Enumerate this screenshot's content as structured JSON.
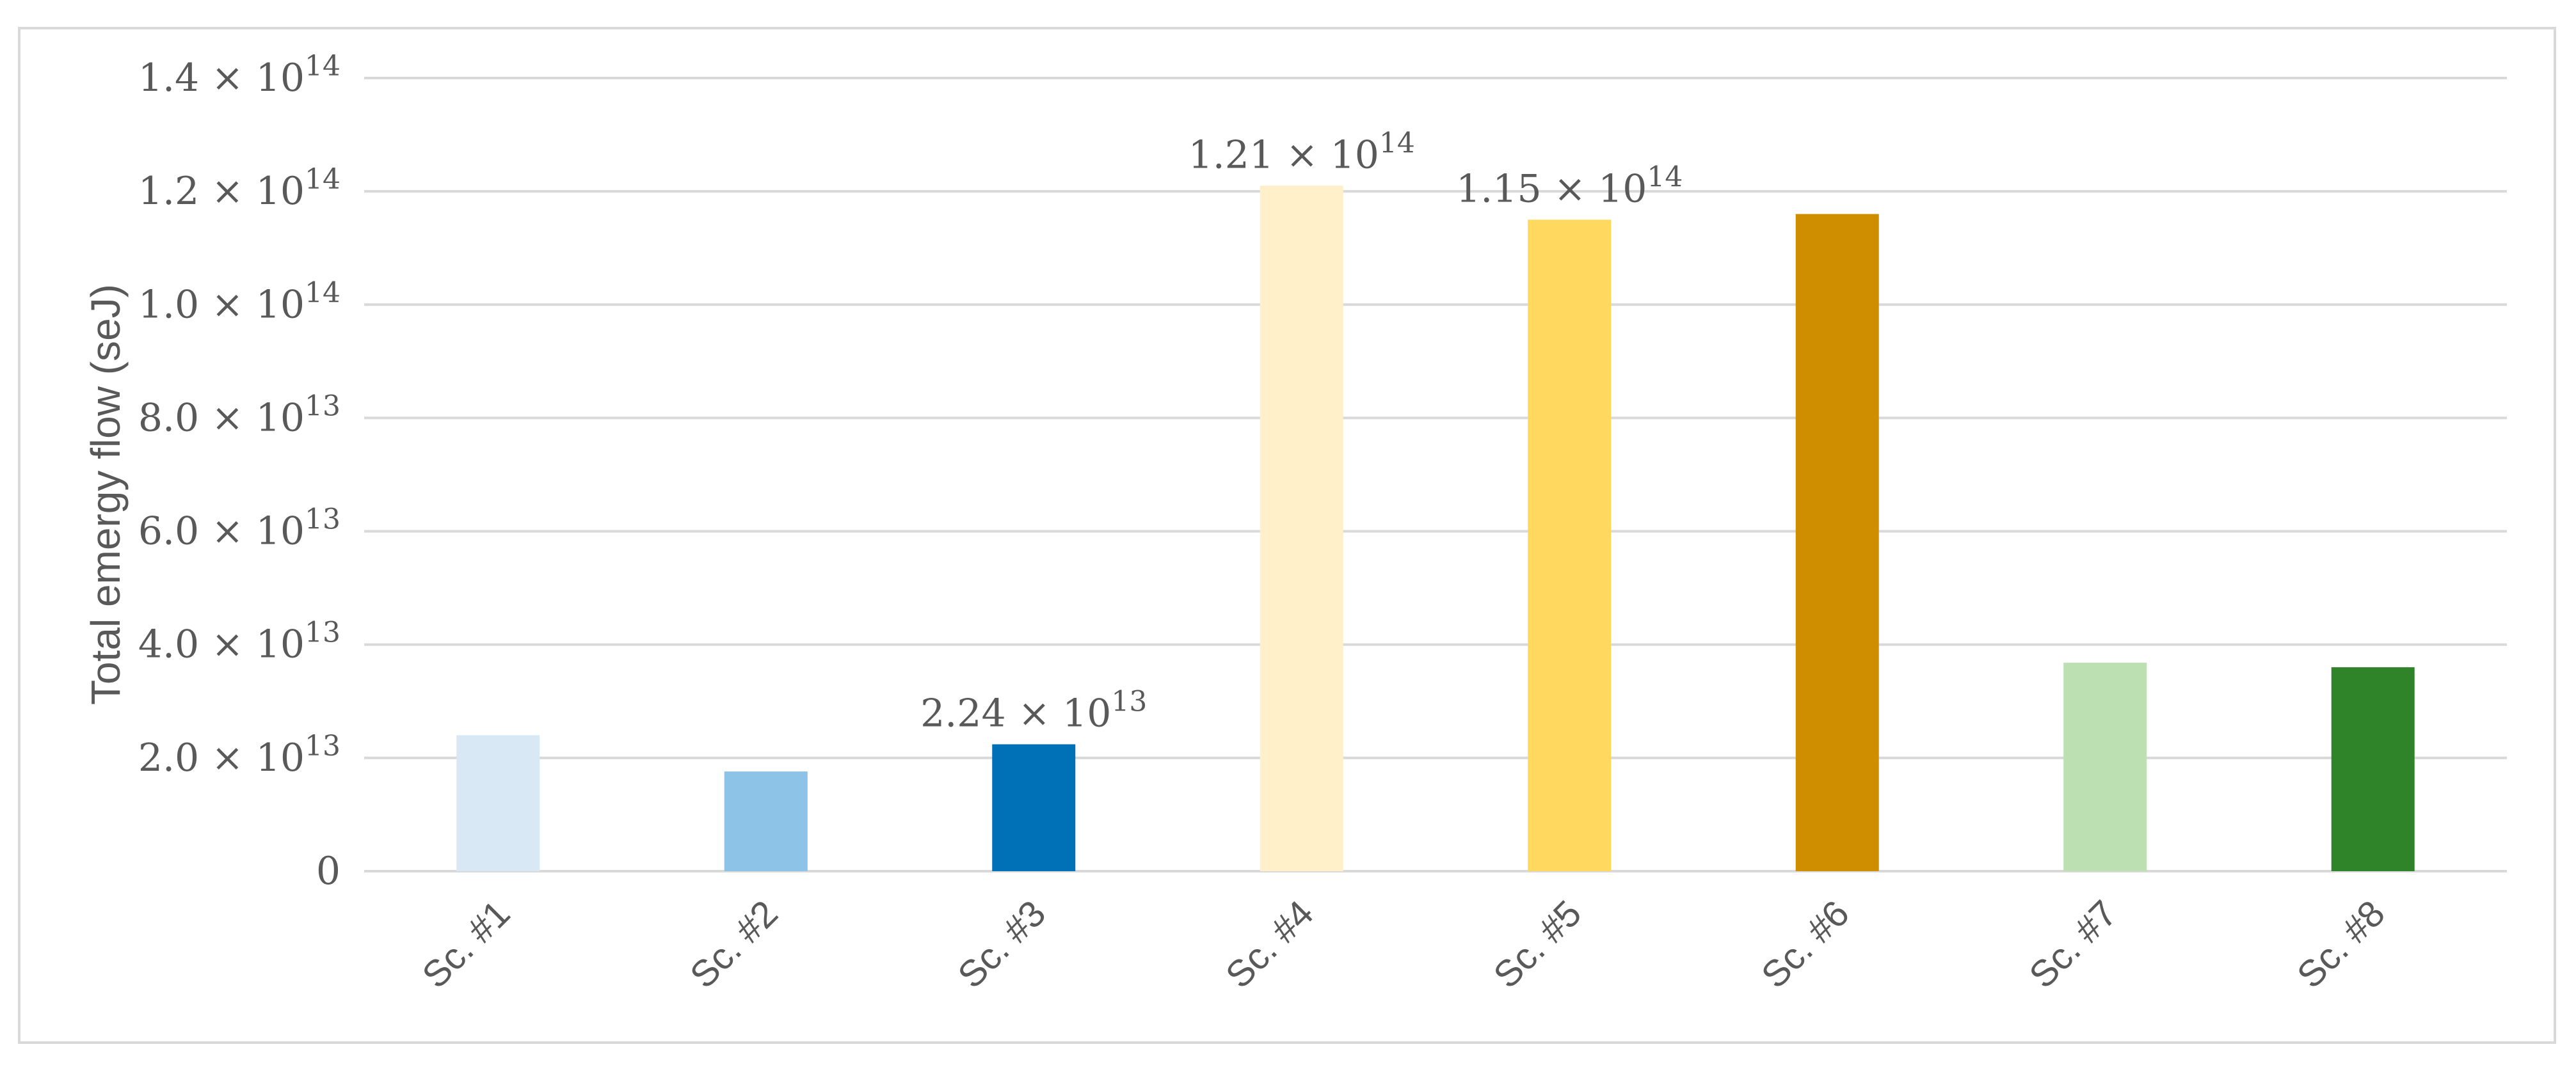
{
  "chart_data": {
    "type": "bar",
    "title": "",
    "xlabel": "",
    "ylabel": "Total emergy flow (seJ)",
    "ylim": [
      0,
      140000000000000
    ],
    "grid": true,
    "legend": "none",
    "categories": [
      "Sc. #1",
      "Sc. #2",
      "Sc. #3",
      "Sc. #4",
      "Sc. #5",
      "Sc. #6",
      "Sc. #7",
      "Sc. #8"
    ],
    "values": [
      24000000000000,
      17600000000000,
      22400000000000,
      121000000000000,
      115000000000000,
      116000000000000,
      36800000000000,
      36000000000000
    ],
    "colors": [
      "#d9e8f5",
      "#8ec3e8",
      "#0071b7",
      "#fff0c9",
      "#ffd95f",
      "#cf8d00",
      "#bce0b2",
      "#2f8429"
    ],
    "gridline_color": "#d9d9d9",
    "yticks": [
      {
        "value": 0,
        "mantissa": "0",
        "exponent": ""
      },
      {
        "value": 20000000000000,
        "mantissa": "2.0",
        "exponent": "13"
      },
      {
        "value": 40000000000000,
        "mantissa": "4.0",
        "exponent": "13"
      },
      {
        "value": 60000000000000,
        "mantissa": "6.0",
        "exponent": "13"
      },
      {
        "value": 80000000000000,
        "mantissa": "8.0",
        "exponent": "13"
      },
      {
        "value": 100000000000000,
        "mantissa": "1.0",
        "exponent": "14"
      },
      {
        "value": 120000000000000,
        "mantissa": "1.2",
        "exponent": "14"
      },
      {
        "value": 140000000000000,
        "mantissa": "1.4",
        "exponent": "14"
      }
    ],
    "data_labels": [
      {
        "index": 2,
        "mantissa": "2.24",
        "exponent": "13"
      },
      {
        "index": 3,
        "mantissa": "1.21",
        "exponent": "14"
      },
      {
        "index": 4,
        "mantissa": "1.15",
        "exponent": "14"
      }
    ],
    "times_symbol": "×",
    "base": "10"
  }
}
